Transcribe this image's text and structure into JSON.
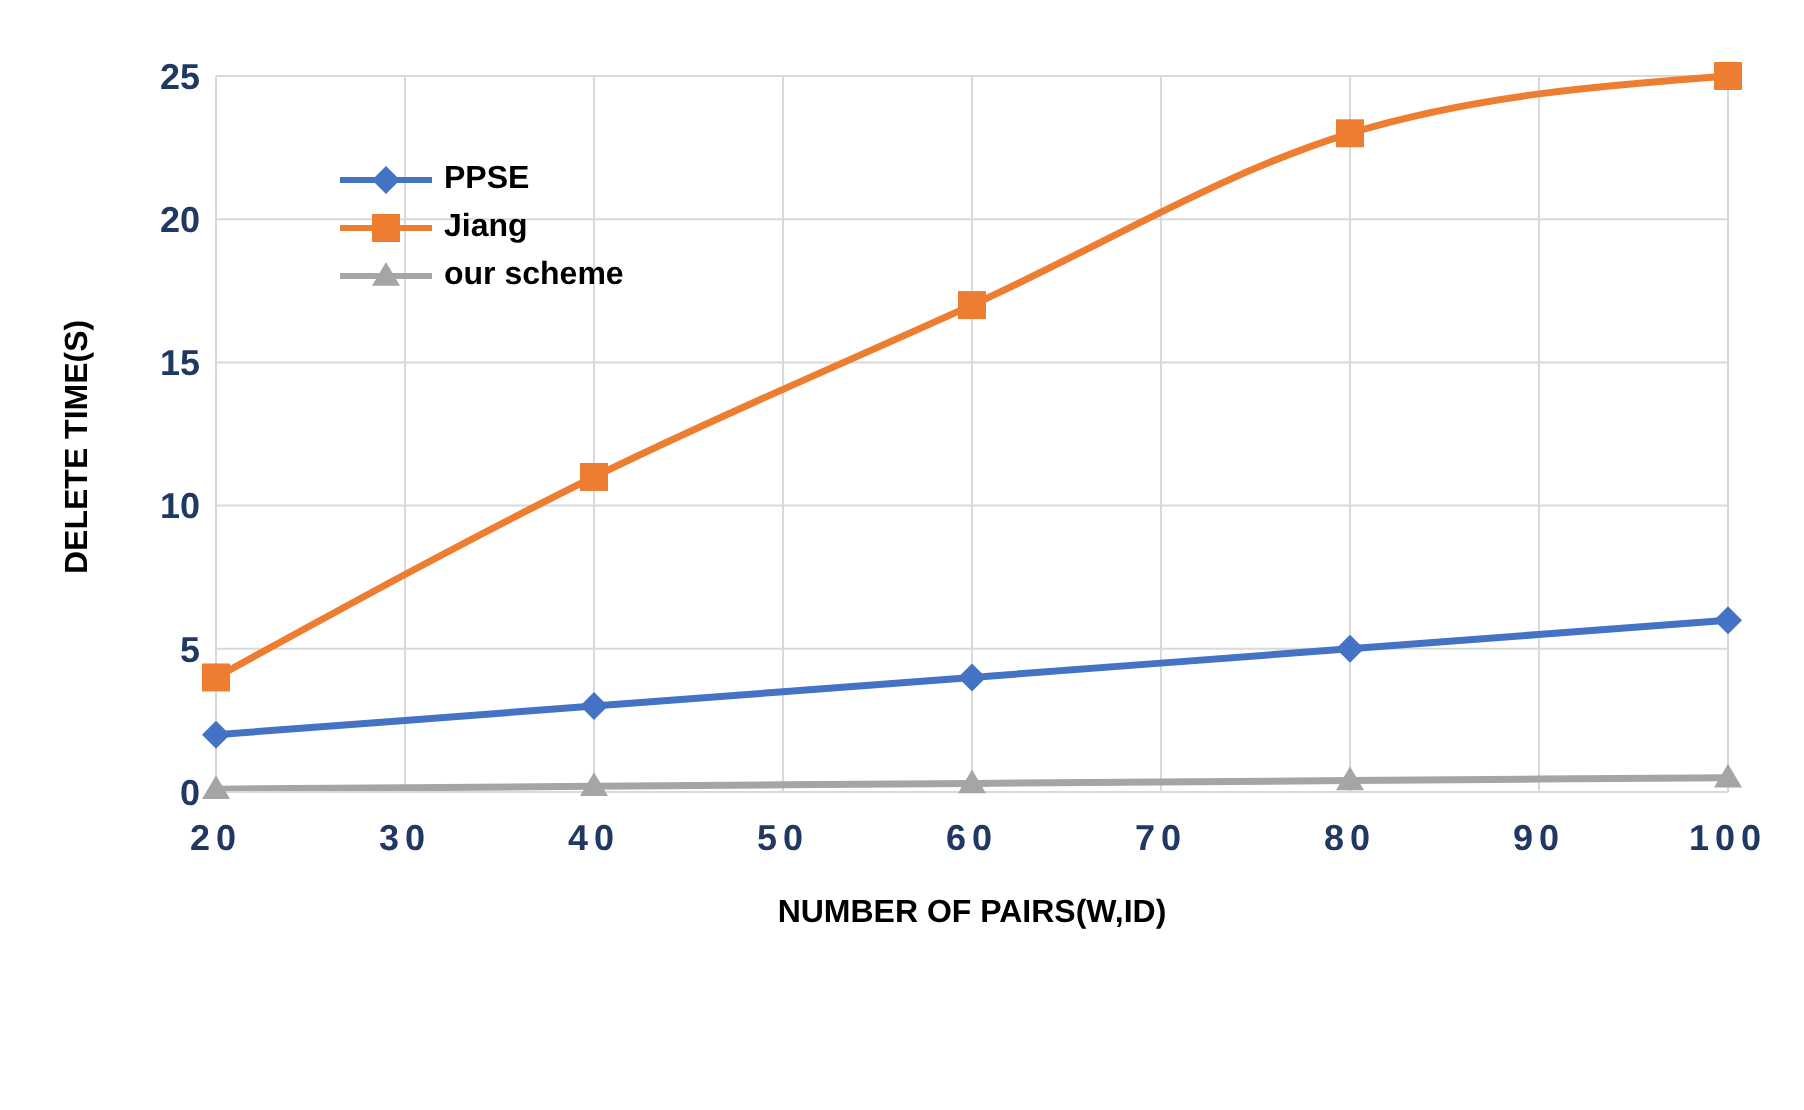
{
  "chart_data": {
    "type": "line",
    "xlabel": "NUMBER OF PAIRS(W,ID)",
    "ylabel": "DELETE TIME(S)",
    "x": [
      20,
      40,
      60,
      80,
      100
    ],
    "series": [
      {
        "name": "PPSE",
        "color": "#4472c4",
        "marker": "diamond",
        "values": [
          2,
          3,
          4,
          5,
          6
        ]
      },
      {
        "name": "Jiang",
        "color": "#ed7d31",
        "marker": "square",
        "values": [
          4,
          11,
          17,
          23,
          25
        ]
      },
      {
        "name": "our scheme",
        "color": "#a5a5a5",
        "marker": "triangle",
        "values": [
          0.1,
          0.2,
          0.3,
          0.4,
          0.5
        ]
      }
    ],
    "xlim": [
      20,
      100
    ],
    "xticks": [
      20,
      30,
      40,
      50,
      60,
      70,
      80,
      90,
      100
    ],
    "ylim": [
      0,
      25
    ],
    "yticks": [
      0,
      5,
      10,
      15,
      20,
      25
    ],
    "grid": true,
    "legend": "top left",
    "line_style": "solid"
  }
}
